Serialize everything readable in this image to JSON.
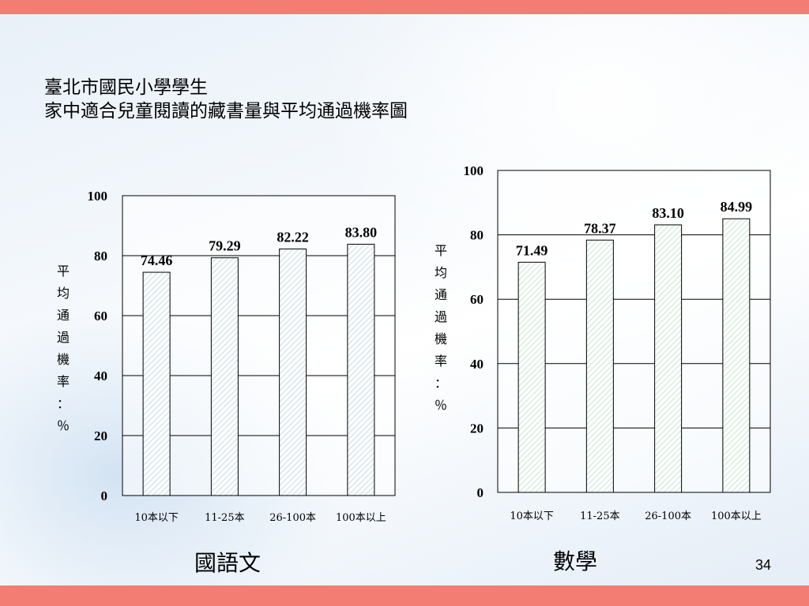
{
  "slide": {
    "title_line1": "臺北市國民小學學生",
    "title_line2": "家中適合兒童閱讀的藏書量與平均通過機率圖",
    "page_number": "34"
  },
  "colors": {
    "band": "#f37c73",
    "chinese_bar_hatch": "#b8d4dc",
    "math_bar_hatch": "#b8e2c4"
  },
  "chart_data": [
    {
      "type": "bar",
      "subject_label": "國語文",
      "ylabel_chars": [
        "平",
        "均",
        "通",
        "過",
        "機",
        "率",
        "：",
        "％"
      ],
      "categories": [
        "10本以下",
        "11-25本",
        "26-100本",
        "100本以上"
      ],
      "values": [
        74.46,
        79.29,
        82.22,
        83.8
      ],
      "value_labels": [
        "74.46",
        "79.29",
        "82.22",
        "83.80"
      ],
      "ylim": [
        0,
        100
      ],
      "yticks": [
        "0",
        "20",
        "40",
        "60",
        "80",
        "100"
      ],
      "grid": true
    },
    {
      "type": "bar",
      "subject_label": "數學",
      "ylabel_chars": [
        "平",
        "均",
        "通",
        "過",
        "機",
        "率",
        "：",
        "％"
      ],
      "categories": [
        "10本以下",
        "11-25本",
        "26-100本",
        "100本以上"
      ],
      "values": [
        71.49,
        78.37,
        83.1,
        84.99
      ],
      "value_labels": [
        "71.49",
        "78.37",
        "83.10",
        "84.99"
      ],
      "ylim": [
        0,
        100
      ],
      "yticks": [
        "0",
        "20",
        "40",
        "60",
        "80",
        "100"
      ],
      "grid": true
    }
  ]
}
